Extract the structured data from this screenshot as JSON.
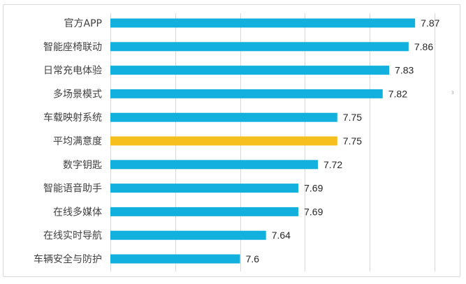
{
  "chart_data": {
    "type": "bar",
    "orientation": "horizontal",
    "title": "",
    "xlabel": "",
    "ylabel": "",
    "xlim": [
      7.4,
      7.9
    ],
    "grid": true,
    "grid_step": 0.1,
    "categories": [
      "官方APP",
      "智能座椅联动",
      "日常充电体验",
      "多场景模式",
      "车载映射系统",
      "平均满意度",
      "数字钥匙",
      "智能语音助手",
      "在线多媒体",
      "在线实时导航",
      "车辆安全与防护"
    ],
    "values": [
      7.87,
      7.86,
      7.83,
      7.82,
      7.75,
      7.75,
      7.72,
      7.69,
      7.69,
      7.64,
      7.6
    ],
    "value_labels": [
      "7.87",
      "7.86",
      "7.83",
      "7.82",
      "7.75",
      "7.75",
      "7.72",
      "7.69",
      "7.69",
      "7.64",
      "7.6"
    ],
    "highlight_index": 5,
    "colors": {
      "bar": "#12b0dd",
      "highlight": "#f5c01e",
      "grid": "#d9d9d9"
    }
  },
  "page_marker": "3"
}
